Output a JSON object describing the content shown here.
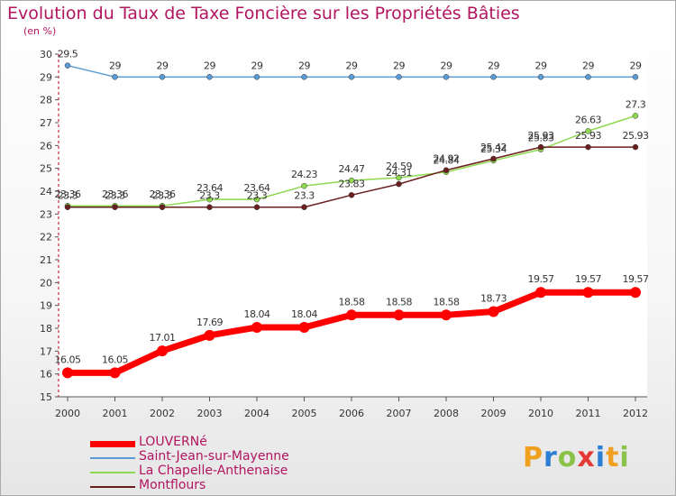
{
  "chart_data": {
    "type": "line",
    "title": "Evolution du Taux de Taxe Foncière sur les Propriétés Bâties",
    "unit_label": "(en %)",
    "x": [
      "2000",
      "2001",
      "2002",
      "2003",
      "2004",
      "2005",
      "2006",
      "2007",
      "2008",
      "2009",
      "2010",
      "2011",
      "2012"
    ],
    "ylim": [
      15,
      30
    ],
    "yticks": [
      15,
      16,
      17,
      18,
      19,
      20,
      21,
      22,
      23,
      24,
      25,
      26,
      27,
      28,
      29,
      30
    ],
    "grid": false,
    "series": [
      {
        "name": "LOUVERNé",
        "color": "#ff0000",
        "values": [
          16.05,
          16.05,
          17.01,
          17.69,
          18.04,
          18.04,
          18.58,
          18.58,
          18.58,
          18.73,
          19.57,
          19.57,
          19.57
        ]
      },
      {
        "name": "Saint-Jean-sur-Mayenne",
        "color": "#5b9bd5",
        "values": [
          29.5,
          29,
          29,
          29,
          29,
          29,
          29,
          29,
          29,
          29,
          29,
          29,
          29
        ]
      },
      {
        "name": "La Chapelle-Anthenaise",
        "color": "#8ed94f",
        "values": [
          23.36,
          23.36,
          23.36,
          23.64,
          23.64,
          24.23,
          24.47,
          24.59,
          24.84,
          25.34,
          25.83,
          26.63,
          27.3
        ]
      },
      {
        "name": "Montflours",
        "color": "#6b1e1e",
        "values": [
          23.3,
          23.3,
          23.3,
          23.3,
          23.3,
          23.3,
          23.83,
          24.31,
          24.92,
          25.42,
          25.93,
          25.93,
          25.93
        ]
      }
    ],
    "legend_position": "bottom-left"
  },
  "logo": {
    "letters": [
      "P",
      "r",
      "o",
      "x",
      "i",
      "t",
      "i"
    ],
    "colors": [
      "#f0a020",
      "#2a7fd4",
      "#8bc34a",
      "#e53935",
      "#2a7fd4",
      "#f0a020",
      "#8bc34a"
    ]
  }
}
